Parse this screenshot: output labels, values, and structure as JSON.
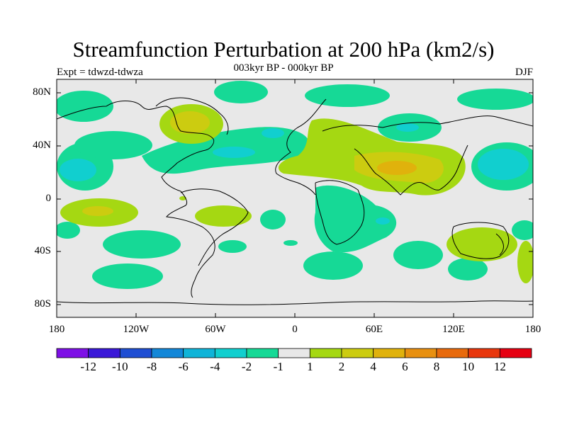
{
  "title": "Streamfunction Perturbation at 200 hPa (km2/s)",
  "subtitle": "003kyr BP - 000kyr BP",
  "left_label": "Expt = tdwzd-tdwza",
  "right_label": "DJF",
  "lat_labels": [
    "80N",
    "40N",
    "0",
    "40S",
    "80S"
  ],
  "lon_labels": [
    "180",
    "120W",
    "60W",
    "0",
    "60E",
    "120E",
    "180"
  ],
  "colorbar": {
    "colors": [
      "#7e10e6",
      "#3a18d8",
      "#1f4ed3",
      "#1387d8",
      "#10b4d8",
      "#11cfcf",
      "#16d996",
      "#e8e8e8",
      "#a5d812",
      "#cccc10",
      "#e0b20c",
      "#e89010",
      "#e86a0c",
      "#e8360c",
      "#e60012"
    ],
    "labels": [
      "-12",
      "-10",
      "-8",
      "-6",
      "-4",
      "-2",
      "-1",
      "1",
      "2",
      "4",
      "6",
      "8",
      "10",
      "12"
    ]
  }
}
